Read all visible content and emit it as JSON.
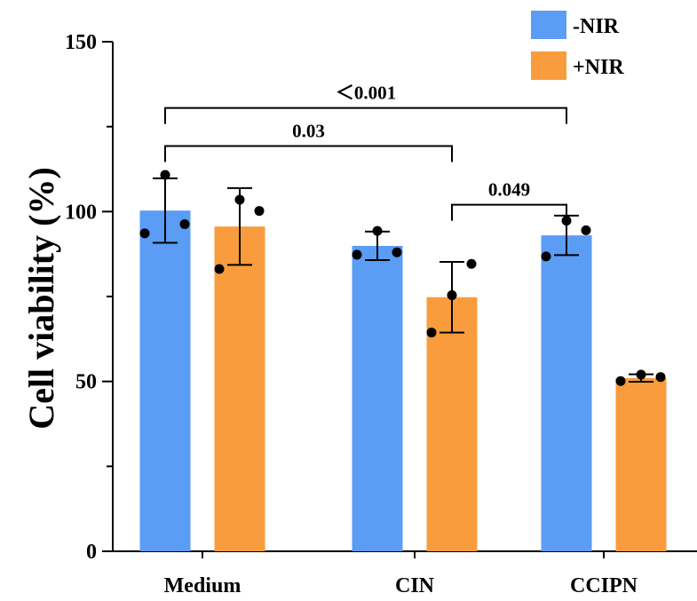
{
  "chart_data": {
    "type": "bar",
    "title": "",
    "xlabel": "",
    "ylabel": "Cell viability (%)",
    "ylim": [
      0,
      150
    ],
    "yticks": [
      "0",
      "50",
      "100",
      "150"
    ],
    "categories": [
      "Medium",
      "CIN",
      "CCIPN"
    ],
    "series": [
      {
        "name": "-NIR",
        "color": "#5b9cf5",
        "values": [
          100.3,
          89.9,
          93.0
        ],
        "errors": [
          9.5,
          4.2,
          5.8
        ],
        "points": [
          [
            93.6,
            110.8,
            96.3
          ],
          [
            87.3,
            94.3,
            88.0
          ],
          [
            86.8,
            97.3,
            94.5
          ]
        ]
      },
      {
        "name": "+NIR",
        "color": "#f99c3e",
        "values": [
          95.6,
          74.8,
          51.0
        ],
        "errors": [
          11.3,
          10.4,
          1.1
        ],
        "points": [
          [
            83.1,
            103.5,
            100.2
          ],
          [
            64.4,
            75.4,
            84.6
          ],
          [
            50.1,
            52.0,
            51.3
          ]
        ]
      }
    ],
    "comparisons": [
      {
        "label": "＜0.001",
        "from": "Medium -NIR",
        "to": "CCIPN -NIR",
        "y": 130.5
      },
      {
        "label": "0.03",
        "from": "Medium -NIR",
        "to": "CIN +NIR",
        "y": 119.3
      },
      {
        "label": "0.049",
        "from": "CIN +NIR",
        "to": "CCIPN -NIR",
        "y": 102.0
      }
    ],
    "legend_position": "top-right",
    "grid": false
  }
}
